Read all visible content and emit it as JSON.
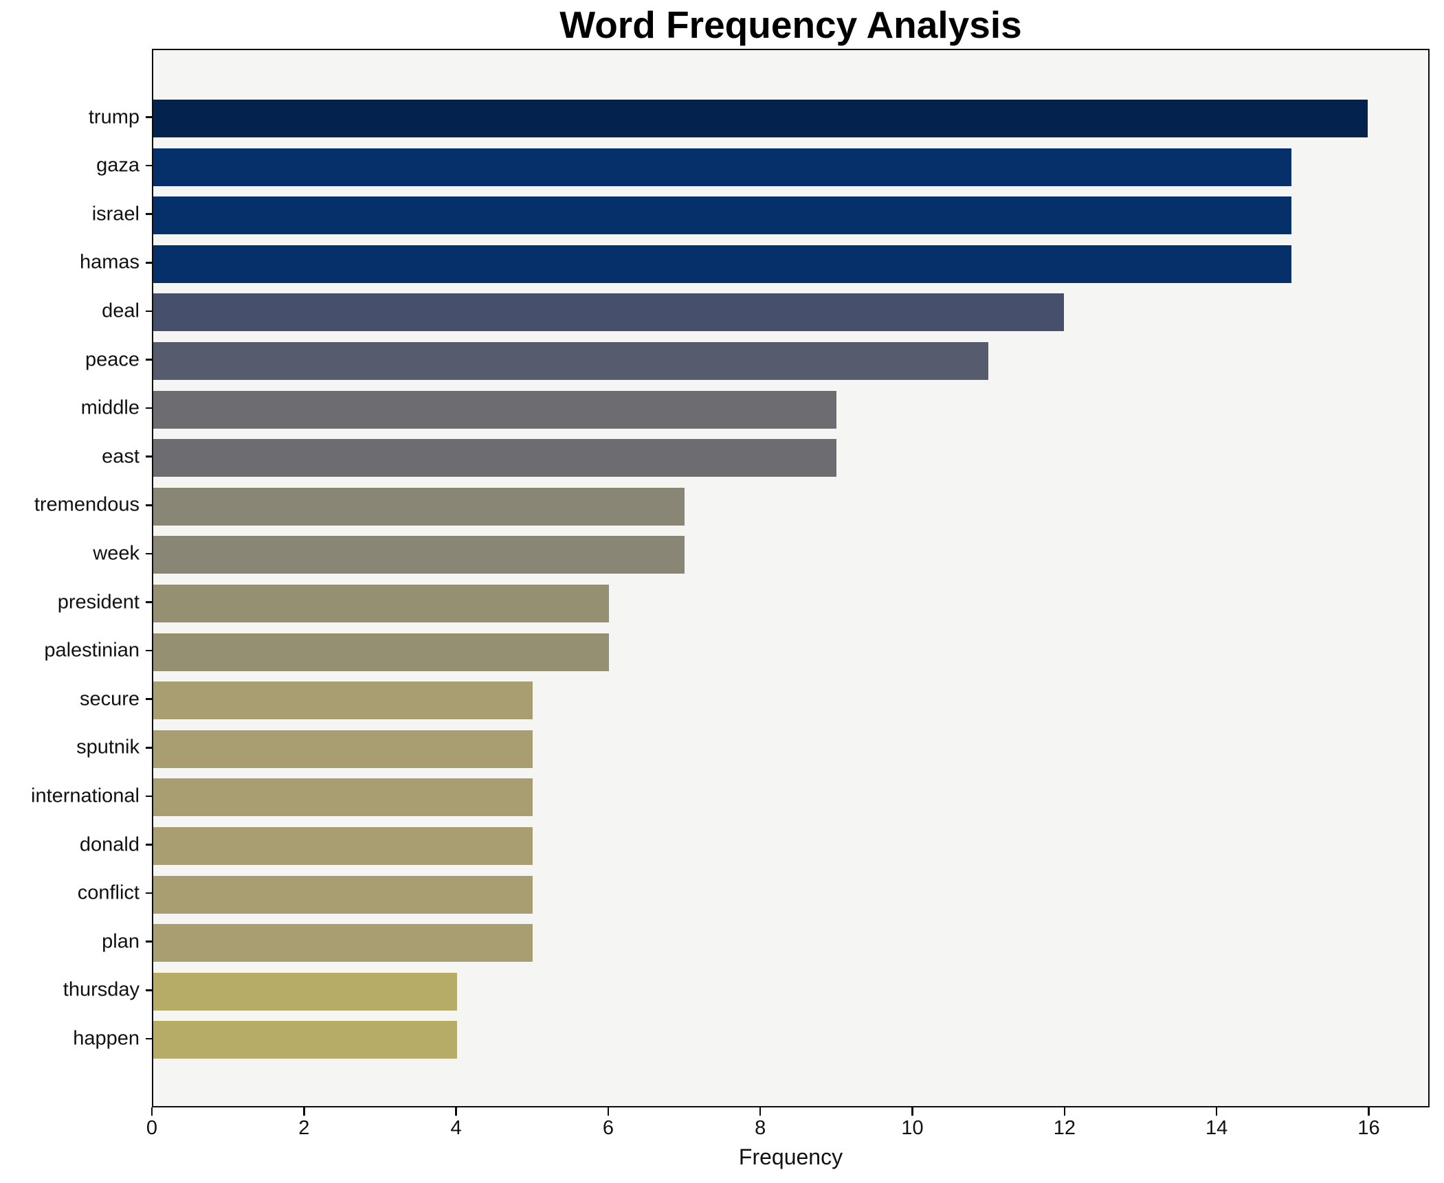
{
  "figure": {
    "background": "#ffffff",
    "plot_background": "#f5f5f4",
    "spine_color": "#0c0c0c",
    "text_color": "#111111"
  },
  "chart_data": {
    "type": "bar",
    "orientation": "horizontal",
    "title": "Word Frequency Analysis",
    "xlabel": "Frequency",
    "ylabel": "",
    "grid": false,
    "legend": false,
    "xlim": [
      0,
      16.8
    ],
    "xticks": [
      0,
      2,
      4,
      6,
      8,
      10,
      12,
      14,
      16
    ],
    "categories": [
      "trump",
      "gaza",
      "israel",
      "hamas",
      "deal",
      "peace",
      "middle",
      "east",
      "tremendous",
      "week",
      "president",
      "palestinian",
      "secure",
      "sputnik",
      "international",
      "donald",
      "conflict",
      "plan",
      "thursday",
      "happen"
    ],
    "values": [
      16,
      15,
      15,
      15,
      12,
      11,
      9,
      9,
      7,
      7,
      6,
      6,
      5,
      5,
      5,
      5,
      5,
      5,
      4,
      4
    ],
    "bar_colors": [
      "#03234e",
      "#053069",
      "#053069",
      "#053069",
      "#46506c",
      "#565c6e",
      "#6c6c71",
      "#6c6c71",
      "#8a8675",
      "#8a8675",
      "#969073",
      "#969073",
      "#a89e72",
      "#a89e72",
      "#a89e72",
      "#a89e72",
      "#a89e72",
      "#a89e72",
      "#b7ab68",
      "#b7ab68"
    ]
  }
}
